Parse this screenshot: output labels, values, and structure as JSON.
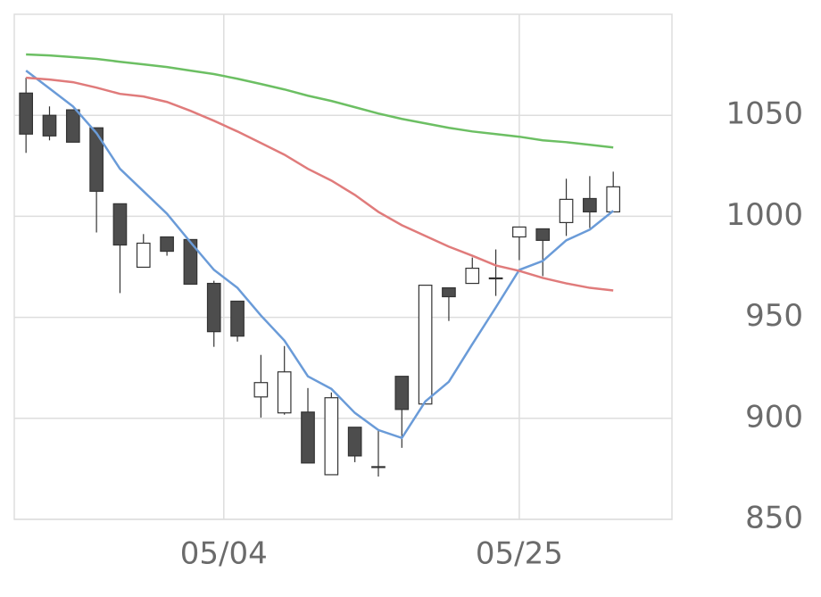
{
  "chart_data": {
    "type": "candlestick",
    "categories": [
      null,
      null,
      null,
      null,
      null,
      null,
      null,
      null,
      null,
      null,
      null,
      null,
      null,
      null,
      null,
      null,
      null,
      null,
      null,
      null,
      null,
      null,
      null,
      null,
      null,
      null
    ],
    "open": [
      1061,
      1050,
      1052.7,
      1043.8,
      1006.2,
      974.8,
      989.8,
      988.5,
      966.8,
      958,
      910.6,
      902.7,
      903.1,
      872.1,
      895.6,
      876.1,
      920.8,
      907.1,
      964.6,
      966.8,
      969.5,
      989.8,
      993.8,
      996.9,
      1008.8,
      1002.2
    ],
    "high": [
      1068.6,
      1054.4,
      1052.7,
      1043.8,
      1006.2,
      991.2,
      989.8,
      988.5,
      968.1,
      958,
      931.4,
      935.8,
      915,
      912.8,
      895.6,
      893.8,
      920.8,
      965.9,
      964.6,
      979.6,
      983.6,
      994.7,
      993.8,
      1018.6,
      1019.9,
      1022.1
    ],
    "low": [
      1031.4,
      1037.6,
      1036.7,
      992,
      962,
      974.8,
      980.5,
      966.4,
      935.4,
      938,
      900.4,
      901.8,
      877.9,
      872.1,
      878.3,
      871.2,
      885.4,
      907.1,
      948.2,
      966.8,
      960.6,
      978.3,
      970.4,
      990.3,
      994.2,
      1002.2
    ],
    "close": [
      1040.7,
      1039.8,
      1036.7,
      1012.4,
      985.8,
      986.7,
      982.7,
      966.4,
      942.9,
      940.7,
      917.7,
      923,
      877.9,
      910.2,
      881.4,
      876.1,
      904.4,
      965.9,
      960.2,
      974.3,
      969.5,
      994.7,
      988.1,
      1008.4,
      1002.2,
      1014.6
    ],
    "up_color": "#ffffff",
    "down_color": "#4d4d4d",
    "lines": [
      {
        "color": "#6a9bd8",
        "values": [
          1072.1,
          1063.3,
          1054.4,
          1041.2,
          1023.5,
          1012.4,
          1001.3,
          987.2,
          973.5,
          964.6,
          950.9,
          938.5,
          920.8,
          914.6,
          902.7,
          894.2,
          890.3,
          908.4,
          918.1,
          936.7,
          954.9,
          973.5,
          977.9,
          988.1,
          993.4,
          1002.7
        ]
      },
      {
        "color": "#e07b7b",
        "values": [
          1068.6,
          1067.7,
          1066.4,
          1063.7,
          1060.6,
          1059.3,
          1056.6,
          1052.2,
          1047.3,
          1042,
          1036.3,
          1030.5,
          1023.5,
          1017.7,
          1010.6,
          1002.2,
          995.6,
          990.3,
          985,
          980.5,
          975.7,
          973,
          969.5,
          966.8,
          964.6,
          963.3
        ]
      },
      {
        "color": "#6cbf63",
        "values": [
          1080.1,
          1079.6,
          1078.8,
          1077.9,
          1076.5,
          1075.2,
          1073.9,
          1072.1,
          1070.4,
          1068.1,
          1065.5,
          1062.8,
          1059.7,
          1057.1,
          1054,
          1050.9,
          1048.2,
          1046,
          1043.8,
          1042,
          1040.7,
          1039.4,
          1037.6,
          1036.7,
          1035.4,
          1034.1
        ]
      }
    ],
    "xlim": [
      -0.5,
      27.5
    ],
    "xticks": [
      {
        "value": 8.42,
        "label": "05/04"
      },
      {
        "value": 21,
        "label": "05/25"
      }
    ],
    "ylim": [
      850,
      1100
    ],
    "yticks": [
      850,
      900,
      950,
      1000,
      1050
    ],
    "grid": true
  }
}
